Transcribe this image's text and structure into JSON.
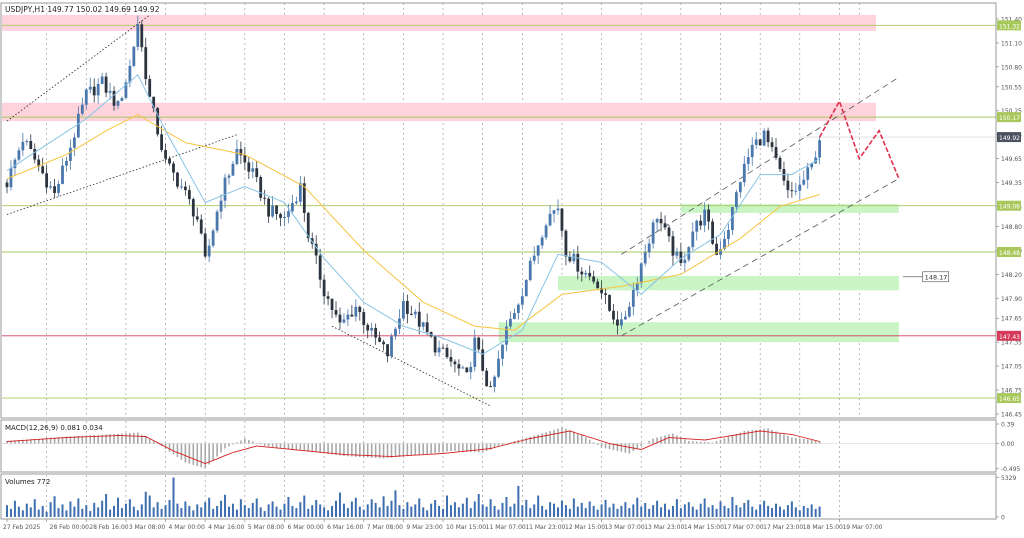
{
  "colors": {
    "bull": "#4a78ad",
    "bear": "#2c3440",
    "ma_fast": "#87c3e6",
    "ma_slow": "#f6c441",
    "resistance_zone": "#ffd3dc",
    "support_zone": "#c9f5c5",
    "level_line": "#a8c85c",
    "pivot_line": "#d63a5a",
    "projection": "#e0304e",
    "macd_signal": "#d62020",
    "macd_hist": "#a9a9a9",
    "volume": "#3d6eb0",
    "grid": "#8f8f8f",
    "axis_text": "#555555",
    "current_price_box": "#4c5360"
  },
  "chart_data": {
    "type": "candlestick",
    "title": "USDJPY,H1  149.77 150.02 149.69 149.92",
    "symbol": "USDJPY",
    "timeframe": "H1",
    "ylim": [
      146.4,
      151.6
    ],
    "y_ticks": [
      "151.40",
      "151.10",
      "150.80",
      "150.55",
      "150.25",
      "149.95",
      "149.65",
      "149.35",
      "149.05",
      "148.80",
      "148.50",
      "148.20",
      "147.90",
      "147.65",
      "147.35",
      "147.05",
      "146.75",
      "146.45"
    ],
    "x_ticks": [
      "27 Feb 2025",
      "28 Feb 00:00",
      "28 Feb 16:00",
      "3 Mar 08:00",
      "4 Mar 00:00",
      "4 Mar 16:00",
      "5 Mar 08:00",
      "6 Mar 00:00",
      "6 Mar 16:00",
      "7 Mar 08:00",
      "9 Mar 23:00",
      "10 Mar 15:00",
      "11 Mar 07:00",
      "11 Mar 23:00",
      "12 Mar 15:00",
      "13 Mar 07:00",
      "13 Mar 23:00",
      "14 Mar 15:00",
      "17 Mar 07:00",
      "17 Mar 23:00",
      "18 Mar 15:00",
      "19 Mar 07:00"
    ],
    "current_price": "149.92",
    "price_labels": [
      "151.32",
      "150.17",
      "149.06",
      "148.48",
      "147.43",
      "146.65"
    ],
    "callout": "148.17",
    "anchors": [
      [
        0,
        149.35
      ],
      [
        4,
        149.9
      ],
      [
        8,
        149.55
      ],
      [
        12,
        149.2
      ],
      [
        16,
        149.8
      ],
      [
        20,
        150.45
      ],
      [
        24,
        150.6
      ],
      [
        28,
        150.3
      ],
      [
        31,
        150.8
      ],
      [
        33,
        151.35
      ],
      [
        36,
        150.4
      ],
      [
        40,
        149.6
      ],
      [
        44,
        149.3
      ],
      [
        48,
        148.9
      ],
      [
        50,
        148.35
      ],
      [
        54,
        149.2
      ],
      [
        58,
        149.75
      ],
      [
        62,
        149.45
      ],
      [
        66,
        149.0
      ],
      [
        70,
        148.9
      ],
      [
        74,
        149.3
      ],
      [
        76,
        148.7
      ],
      [
        80,
        148.0
      ],
      [
        84,
        147.55
      ],
      [
        88,
        147.8
      ],
      [
        92,
        147.45
      ],
      [
        96,
        147.2
      ],
      [
        100,
        147.85
      ],
      [
        104,
        147.6
      ],
      [
        108,
        147.3
      ],
      [
        112,
        147.1
      ],
      [
        116,
        146.9
      ],
      [
        118,
        147.35
      ],
      [
        122,
        146.7
      ],
      [
        126,
        147.5
      ],
      [
        130,
        148.0
      ],
      [
        133,
        148.45
      ],
      [
        136,
        148.9
      ],
      [
        139,
        149.05
      ],
      [
        141,
        148.5
      ],
      [
        145,
        148.25
      ],
      [
        149,
        148.1
      ],
      [
        152,
        147.75
      ],
      [
        155,
        147.55
      ],
      [
        158,
        148.0
      ],
      [
        161,
        148.5
      ],
      [
        164,
        148.95
      ],
      [
        167,
        148.6
      ],
      [
        170,
        148.3
      ],
      [
        173,
        148.75
      ],
      [
        176,
        148.95
      ],
      [
        179,
        148.45
      ],
      [
        182,
        148.8
      ],
      [
        185,
        149.4
      ],
      [
        188,
        149.8
      ],
      [
        191,
        149.95
      ],
      [
        194,
        149.6
      ],
      [
        197,
        149.2
      ],
      [
        200,
        149.3
      ],
      [
        203,
        149.55
      ],
      [
        205,
        149.92
      ]
    ],
    "ma_fast_anchors": [
      [
        0,
        149.5
      ],
      [
        20,
        150.15
      ],
      [
        33,
        150.7
      ],
      [
        40,
        150.0
      ],
      [
        50,
        149.1
      ],
      [
        60,
        149.3
      ],
      [
        70,
        149.1
      ],
      [
        80,
        148.4
      ],
      [
        90,
        147.85
      ],
      [
        100,
        147.55
      ],
      [
        110,
        147.4
      ],
      [
        120,
        147.2
      ],
      [
        130,
        147.5
      ],
      [
        139,
        148.45
      ],
      [
        150,
        148.35
      ],
      [
        160,
        147.95
      ],
      [
        170,
        148.4
      ],
      [
        180,
        148.7
      ],
      [
        190,
        149.45
      ],
      [
        198,
        149.45
      ],
      [
        205,
        149.65
      ]
    ],
    "ma_slow_anchors": [
      [
        0,
        149.4
      ],
      [
        15,
        149.7
      ],
      [
        25,
        150.0
      ],
      [
        33,
        150.2
      ],
      [
        45,
        149.85
      ],
      [
        60,
        149.7
      ],
      [
        75,
        149.3
      ],
      [
        90,
        148.5
      ],
      [
        105,
        147.85
      ],
      [
        118,
        147.55
      ],
      [
        128,
        147.5
      ],
      [
        140,
        147.95
      ],
      [
        155,
        148.05
      ],
      [
        170,
        148.2
      ],
      [
        185,
        148.65
      ],
      [
        195,
        149.05
      ],
      [
        205,
        149.2
      ]
    ],
    "resistance_zones": [
      [
        151.25,
        151.45
      ],
      [
        150.12,
        150.35
      ]
    ],
    "support_zones": [
      [
        148.97,
        149.08
      ],
      [
        148.0,
        148.18
      ],
      [
        147.35,
        147.6
      ]
    ],
    "horizontal_lines": [
      151.32,
      150.17,
      149.06,
      148.48,
      146.65
    ],
    "pivot_line": 147.43,
    "projection": [
      [
        205,
        149.92
      ],
      [
        210,
        150.37
      ],
      [
        215,
        149.65
      ],
      [
        220,
        150.0
      ],
      [
        225,
        149.4
      ]
    ],
    "channels": [
      {
        "p1": [
          0,
          150.12
        ],
        "p2": [
          36,
          151.45
        ],
        "dash": "dot"
      },
      {
        "p1": [
          0,
          148.95
        ],
        "p2": [
          58,
          149.95
        ],
        "dash": "dot"
      },
      {
        "p1": [
          82,
          147.55
        ],
        "p2": [
          122,
          146.55
        ],
        "dash": "dot"
      },
      {
        "p1": [
          155,
          148.45
        ],
        "p2": [
          225,
          150.67
        ],
        "dash": "dash"
      },
      {
        "p1": [
          155,
          147.43
        ],
        "p2": [
          225,
          149.4
        ],
        "dash": "dash"
      }
    ],
    "macd": {
      "label": "MACD(12,26,9) 0.081 0.034",
      "y_ticks": [
        "0.39",
        "0.00",
        "-0.495"
      ],
      "ylim": [
        -0.55,
        0.45
      ],
      "anchors": [
        [
          0,
          0.05
        ],
        [
          15,
          0.14
        ],
        [
          25,
          0.18
        ],
        [
          33,
          0.22
        ],
        [
          38,
          0.0
        ],
        [
          45,
          -0.38
        ],
        [
          50,
          -0.5
        ],
        [
          55,
          -0.1
        ],
        [
          60,
          0.1
        ],
        [
          65,
          -0.05
        ],
        [
          75,
          -0.15
        ],
        [
          85,
          -0.25
        ],
        [
          95,
          -0.3
        ],
        [
          105,
          -0.22
        ],
        [
          112,
          -0.15
        ],
        [
          120,
          -0.18
        ],
        [
          128,
          0.05
        ],
        [
          135,
          0.2
        ],
        [
          140,
          0.32
        ],
        [
          145,
          0.18
        ],
        [
          150,
          -0.08
        ],
        [
          157,
          -0.2
        ],
        [
          163,
          0.1
        ],
        [
          168,
          0.2
        ],
        [
          172,
          0.05
        ],
        [
          178,
          0.02
        ],
        [
          186,
          0.25
        ],
        [
          192,
          0.3
        ],
        [
          198,
          0.12
        ],
        [
          205,
          0.05
        ]
      ],
      "signal_anchors": [
        [
          0,
          0.04
        ],
        [
          15,
          0.12
        ],
        [
          28,
          0.16
        ],
        [
          35,
          0.14
        ],
        [
          42,
          -0.15
        ],
        [
          50,
          -0.4
        ],
        [
          57,
          -0.18
        ],
        [
          63,
          -0.05
        ],
        [
          72,
          -0.12
        ],
        [
          85,
          -0.22
        ],
        [
          97,
          -0.26
        ],
        [
          110,
          -0.2
        ],
        [
          122,
          -0.1
        ],
        [
          132,
          0.1
        ],
        [
          142,
          0.25
        ],
        [
          152,
          0.0
        ],
        [
          160,
          -0.12
        ],
        [
          167,
          0.12
        ],
        [
          176,
          0.07
        ],
        [
          190,
          0.25
        ],
        [
          198,
          0.18
        ],
        [
          205,
          0.04
        ]
      ]
    },
    "volumes": {
      "label": "Volumes 772",
      "y_ticks": [
        "5329",
        "0"
      ],
      "ylim": [
        0,
        5400
      ],
      "values": [
        1600,
        1100,
        2200,
        1400,
        900,
        1800,
        1300,
        2400,
        1000,
        1500,
        700,
        2000,
        2800,
        1200,
        1700,
        900,
        2100,
        1400,
        2500,
        1100,
        1600,
        800,
        1900,
        1300,
        2200,
        3100,
        1000,
        1500,
        2600,
        1200,
        1800,
        2400,
        1400,
        900,
        1700,
        3400,
        2900,
        1300,
        2000,
        1100,
        1600,
        2300,
        5329,
        1800,
        1200,
        2100,
        1500,
        900,
        1700,
        1300,
        2000,
        2600,
        1100,
        1500,
        2200,
        3000,
        1400,
        1800,
        1000,
        2400,
        1600,
        1200,
        1900,
        2500,
        1300,
        800,
        1700,
        2100,
        1400,
        1000,
        1800,
        2700,
        1500,
        1200,
        2000,
        2900,
        1100,
        1600,
        2300,
        1700,
        1300,
        900,
        1500,
        2200,
        3300,
        1800,
        1200,
        2100,
        2600,
        1400,
        1000,
        1700,
        2400,
        1900,
        1300,
        2800,
        1500,
        2200,
        3600,
        1600,
        1100,
        2000,
        1400,
        1700,
        2500,
        1300,
        900,
        1800,
        2300,
        1500,
        1100,
        2900,
        1600,
        2000,
        1300,
        1800,
        2600,
        1200,
        2100,
        3100,
        1700,
        1400,
        2400,
        1500,
        1000,
        1900,
        2700,
        1400,
        1800,
        4200,
        1600,
        2300,
        1200,
        1700,
        2900,
        1500,
        1000,
        2000,
        1800,
        1300,
        2200,
        1600,
        1100,
        2500,
        1400,
        1900,
        1200,
        2100,
        1500,
        1000,
        1700,
        2300,
        1300,
        1800,
        1100,
        1500,
        2000,
        1200,
        1700,
        2600,
        1400,
        1900,
        1100,
        1600,
        2200,
        1300,
        1800,
        1000,
        1500,
        2400,
        1200,
        1700,
        2000,
        1400,
        1000,
        1800,
        2500,
        1300,
        1600,
        1100,
        2100,
        1500,
        1200,
        2700,
        1600,
        1300,
        1900,
        2300,
        1400,
        1000,
        1700,
        2200,
        1500,
        1200,
        1800,
        1400,
        1000,
        1600,
        2100,
        1300,
        900,
        1500,
        1200,
        1700,
        1100,
        1400,
        1000,
        1300,
        800
      ]
    }
  }
}
